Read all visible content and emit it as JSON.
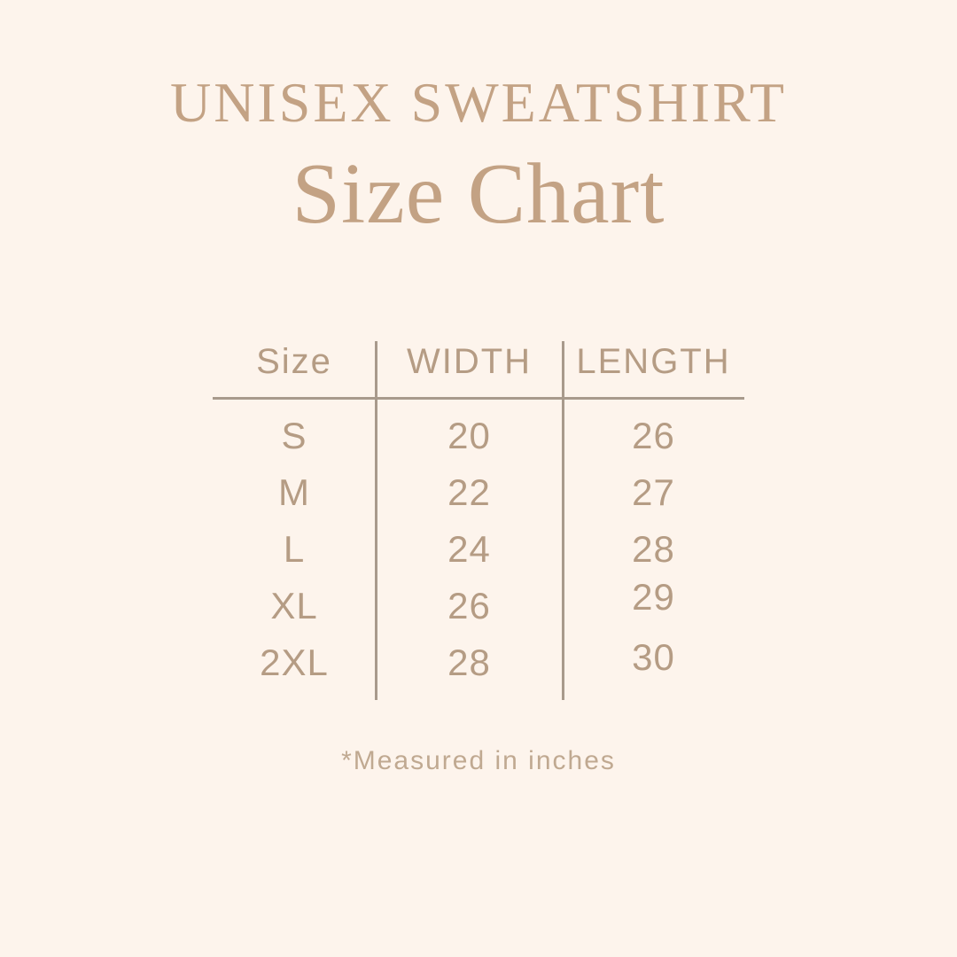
{
  "meta": {
    "colors": {
      "bg": "#fdf4ec",
      "accent": "#c3a284",
      "table_text": "#b59c84",
      "line": "#a89a8c",
      "footer_text": "#c0a991"
    }
  },
  "header": {
    "title": "UNISEX SWEATSHIRT",
    "subtitle": "Size Chart"
  },
  "chart_data": {
    "type": "table",
    "title": "UNISEX SWEATSHIRT",
    "subtitle": "Size Chart",
    "columns": [
      "Size",
      "WIDTH",
      "LENGTH"
    ],
    "rows": [
      [
        "S",
        "20",
        "26"
      ],
      [
        "M",
        "22",
        "27"
      ],
      [
        "L",
        "24",
        "28"
      ],
      [
        "XL",
        "26",
        "29"
      ],
      [
        "2XL",
        "28",
        "30"
      ]
    ],
    "units": "inches",
    "footnote": "*Measured in inches"
  },
  "footer": {
    "note": "*Measured in inches"
  }
}
